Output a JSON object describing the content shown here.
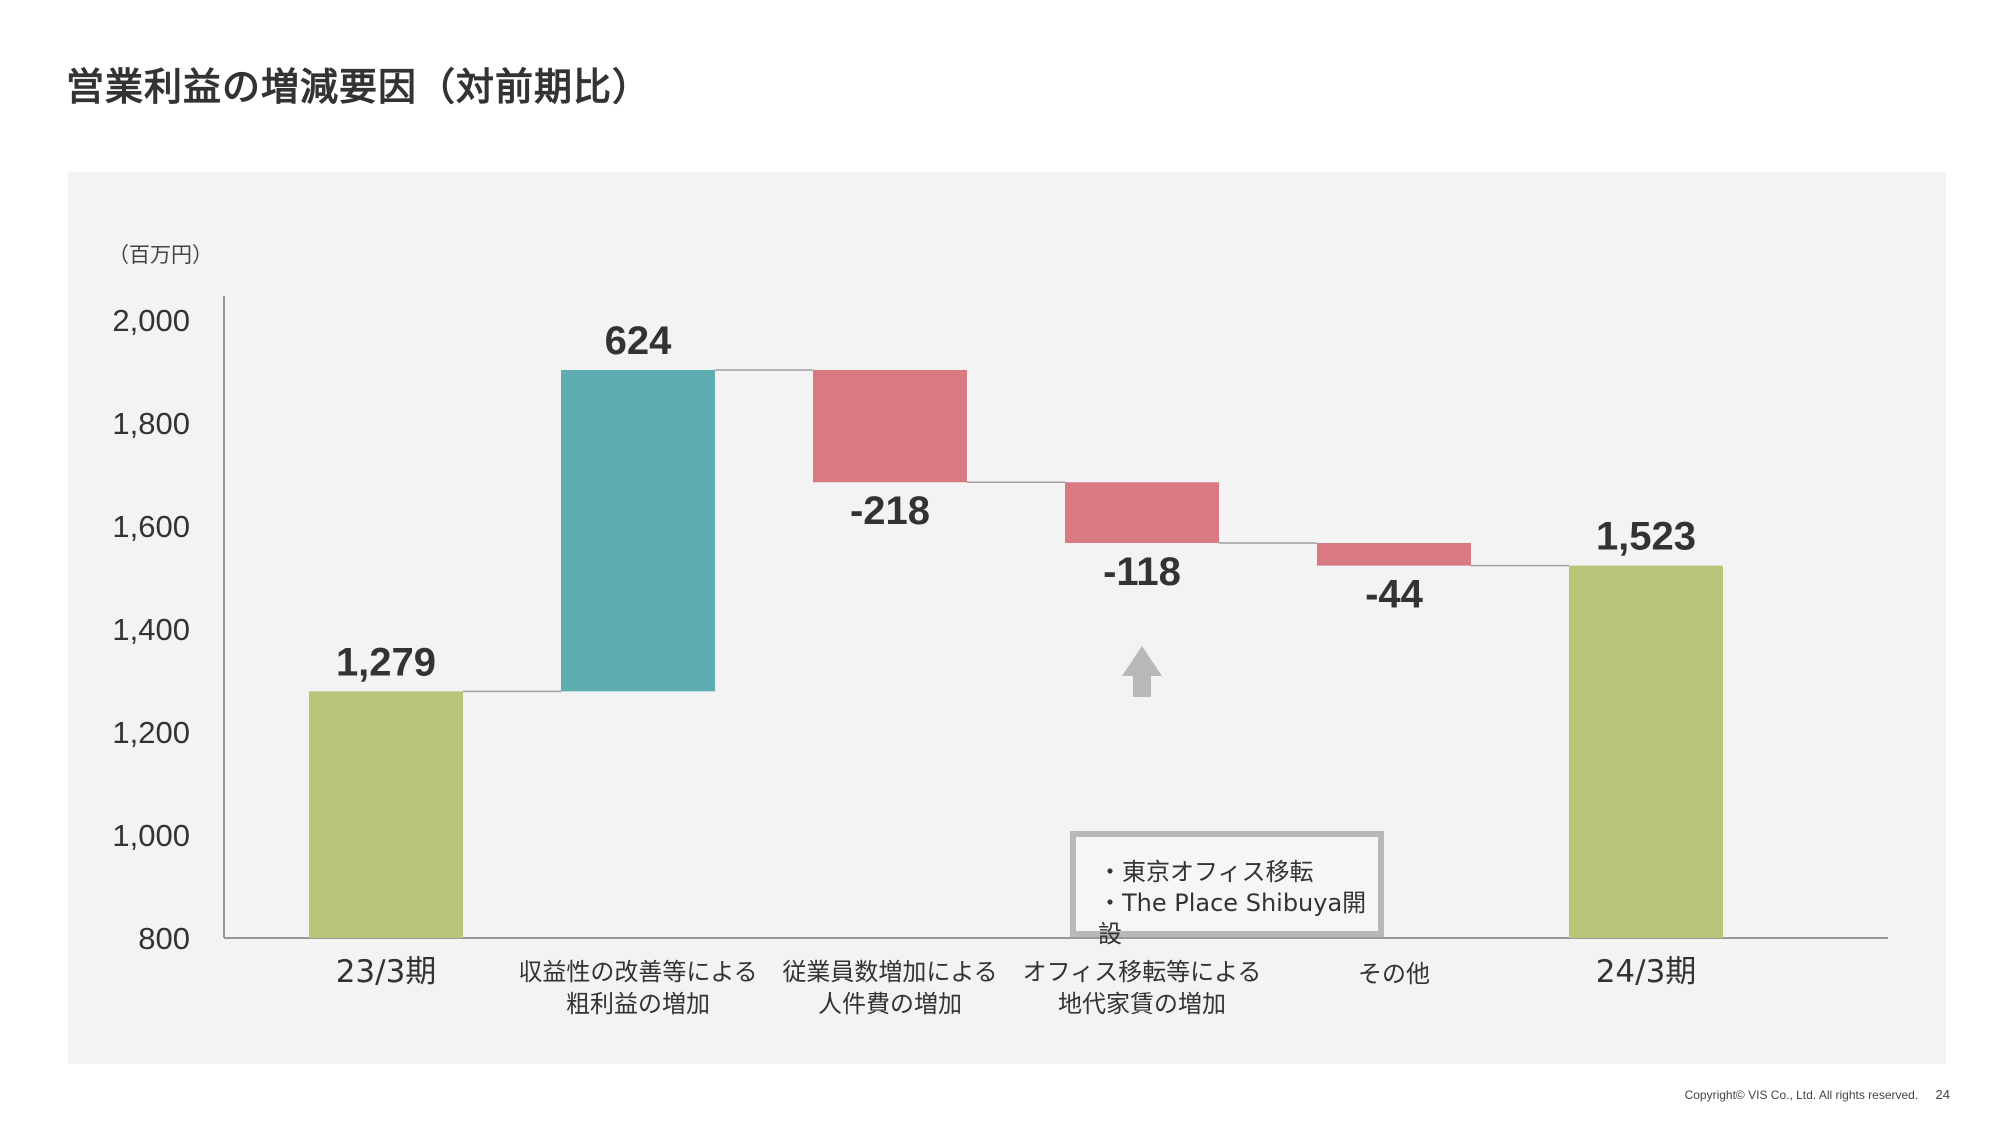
{
  "title": "営業利益の増減要因（対前期比）",
  "footer": {
    "copyright": "Copyright© VIS Co., Ltd. All rights reserved.",
    "page": "24"
  },
  "colors": {
    "total": "#b8c67a",
    "increase": "#5fadb0",
    "decrease": "#d97a83",
    "connector": "#a0a0a0",
    "axis": "#999999"
  },
  "callout": {
    "items": [
      "東京オフィス移転",
      "The Place Shibuya開設"
    ]
  },
  "chart_data": {
    "type": "bar",
    "subtype": "waterfall",
    "unit_label": "（百万円）",
    "ylim": [
      800,
      2000
    ],
    "yticks": [
      800,
      1000,
      1200,
      1400,
      1600,
      1800,
      2000
    ],
    "ytick_labels": [
      "800",
      "1,000",
      "1,200",
      "1,400",
      "1,600",
      "1,800",
      "2,000"
    ],
    "categories": [
      [
        "23/3期"
      ],
      [
        "収益性の改善等による",
        "粗利益の増加"
      ],
      [
        "従業員数増加による",
        "人件費の増加"
      ],
      [
        "オフィス移転等による",
        "地代家賃の増加"
      ],
      [
        "その他"
      ],
      [
        "24/3期"
      ]
    ],
    "values": [
      1279,
      624,
      -218,
      -118,
      -44,
      1523
    ],
    "bar_kinds": [
      "total",
      "increase",
      "decrease",
      "decrease",
      "decrease",
      "total"
    ],
    "value_labels": [
      "1,279",
      "624",
      "-218",
      "-118",
      "-44",
      "1,523"
    ],
    "grid": false,
    "legend": "none"
  }
}
